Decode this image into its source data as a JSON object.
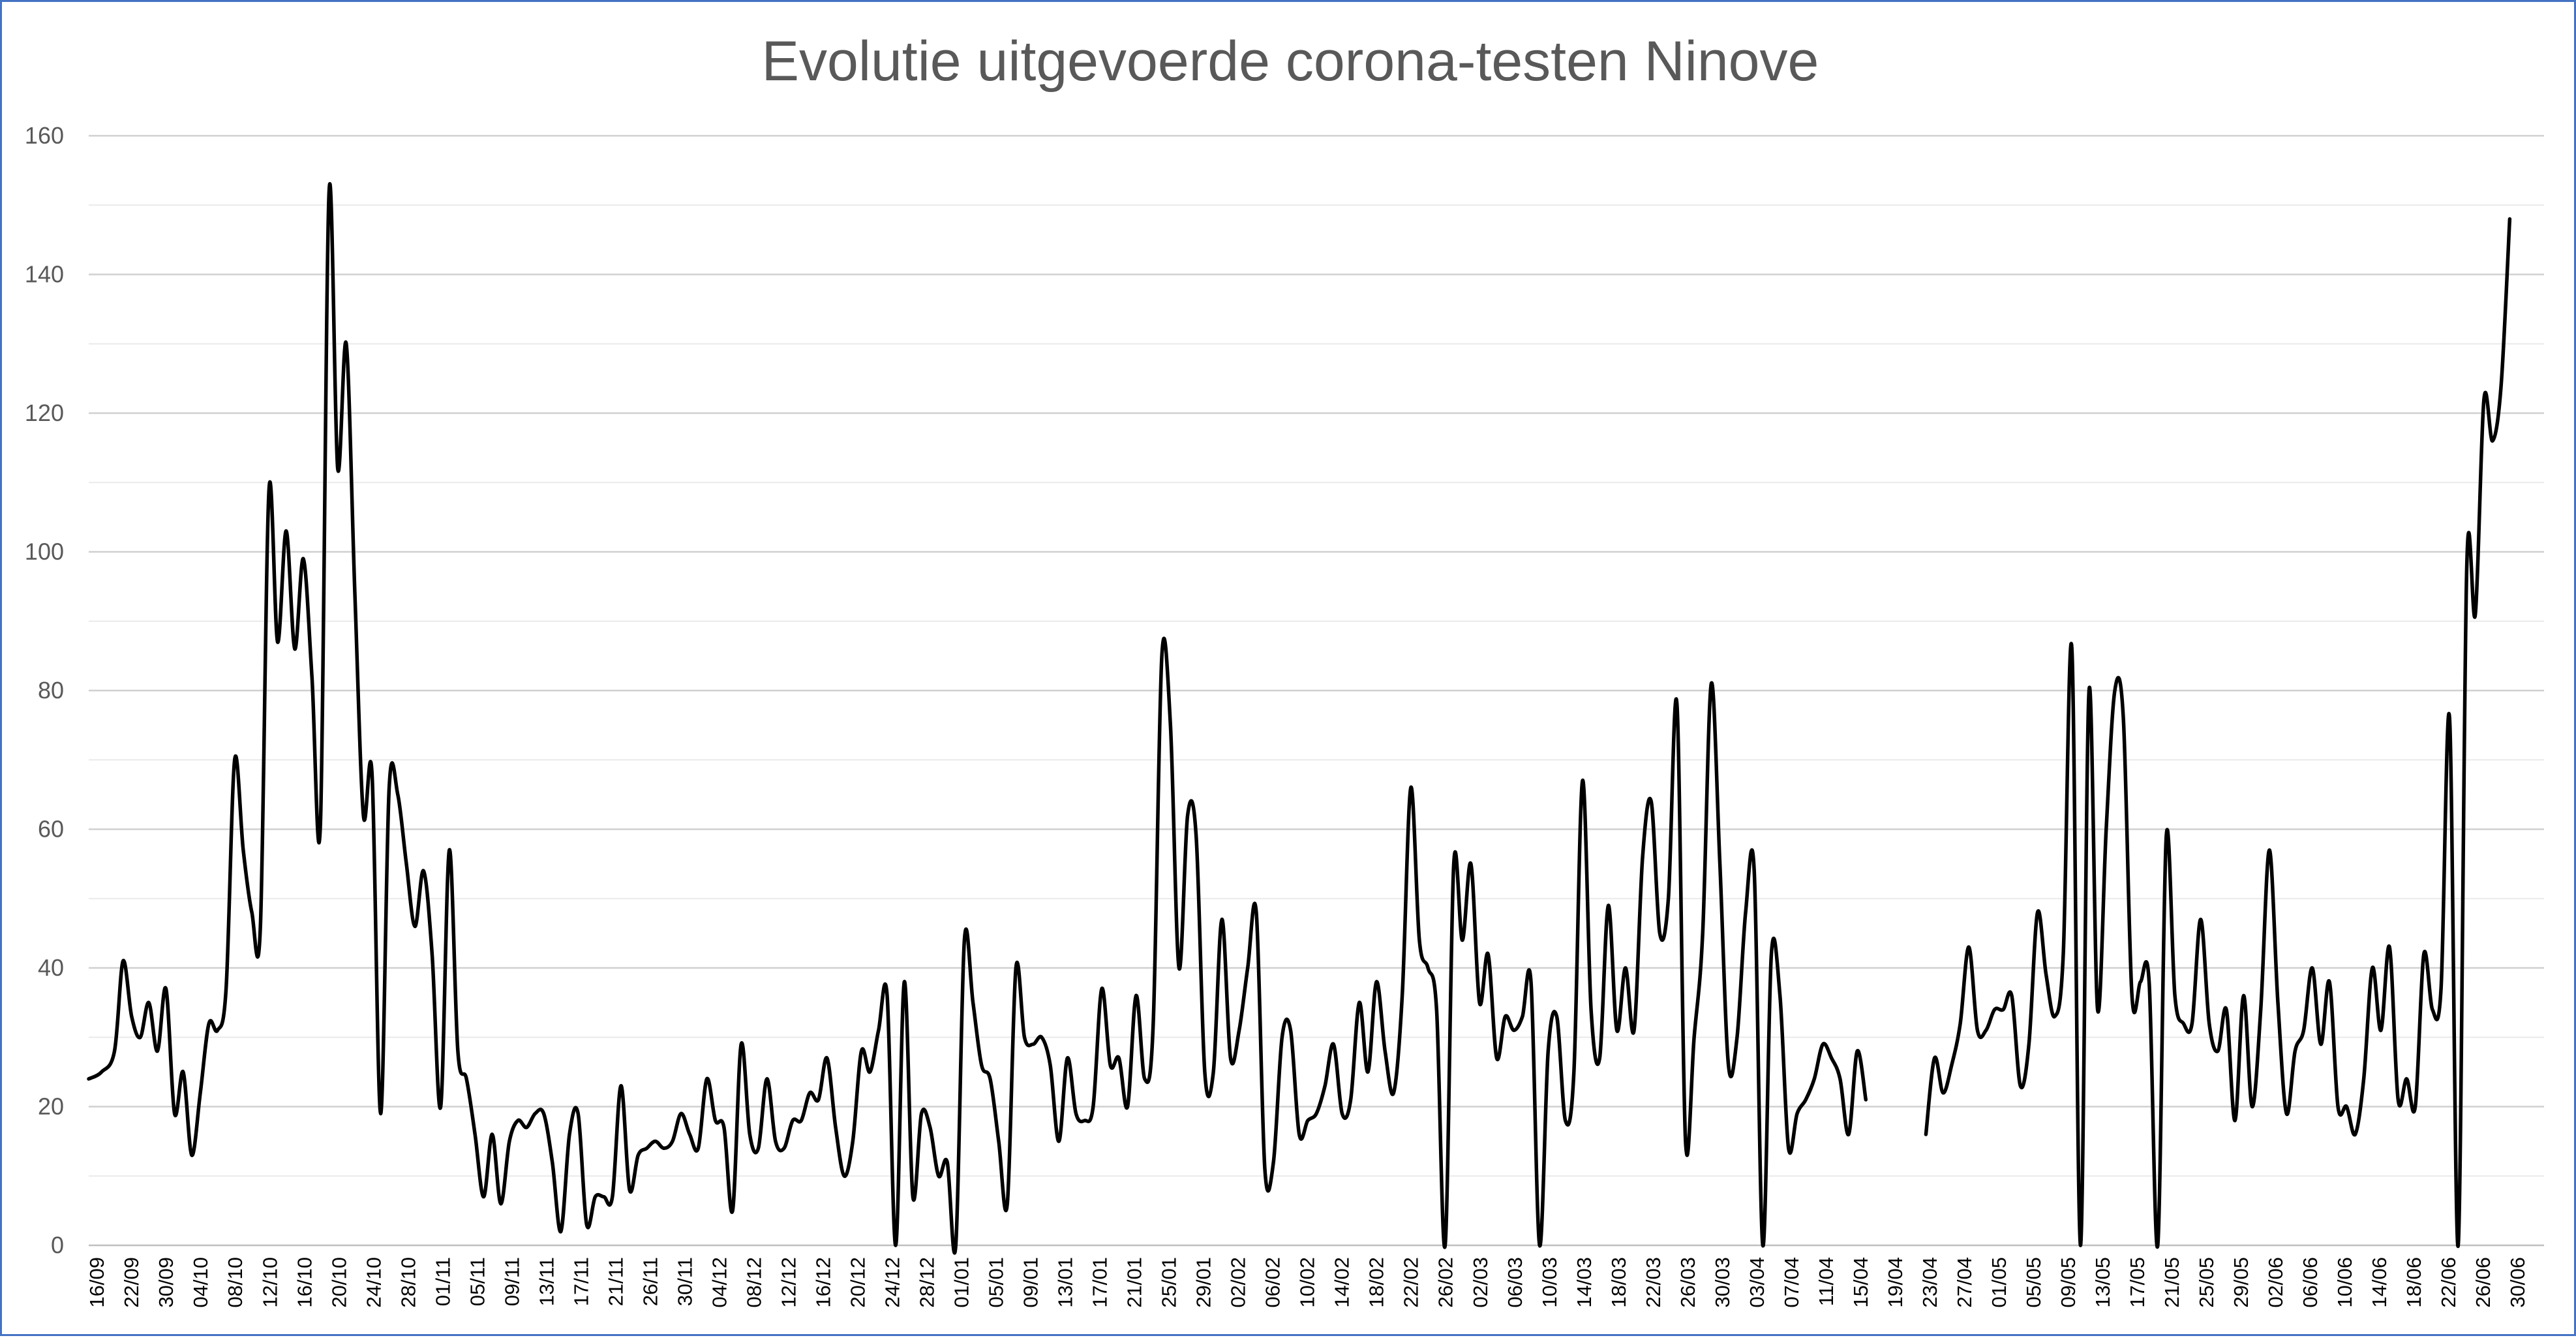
{
  "chart_data": {
    "type": "line",
    "title": "Evolutie uitgevoerde corona-testen Ninove",
    "xlabel": "",
    "ylabel": "",
    "ylim": [
      0,
      160
    ],
    "yticks": [
      0,
      20,
      40,
      60,
      80,
      100,
      120,
      140,
      160
    ],
    "grid": true,
    "minor_grid": true,
    "legend": "none",
    "line_color": "#000000",
    "categories": [
      "16/09",
      "22/09",
      "30/09",
      "04/10",
      "08/10",
      "12/10",
      "16/10",
      "20/10",
      "24/10",
      "28/10",
      "01/11",
      "05/11",
      "09/11",
      "13/11",
      "17/11",
      "21/11",
      "26/11",
      "30/11",
      "04/12",
      "08/12",
      "12/12",
      "16/12",
      "20/12",
      "24/12",
      "28/12",
      "01/01",
      "05/01",
      "09/01",
      "13/01",
      "17/01",
      "21/01",
      "25/01",
      "29/01",
      "02/02",
      "06/02",
      "10/02",
      "14/02",
      "18/02",
      "22/02",
      "26/02",
      "02/03",
      "06/03",
      "10/03",
      "14/03",
      "18/03",
      "22/03",
      "26/03",
      "30/03",
      "03/04",
      "07/04",
      "11/04",
      "15/04",
      "19/04",
      "23/04",
      "27/04",
      "01/05",
      "05/05",
      "09/05",
      "13/05",
      "17/05",
      "21/05",
      "25/05",
      "29/05",
      "02/06",
      "06/06",
      "10/06",
      "14/06",
      "18/06",
      "22/06",
      "26/06",
      "30/06"
    ],
    "series": [
      {
        "values": [
          [
            0,
            24
          ],
          [
            1.5,
            25
          ],
          [
            3,
            28
          ],
          [
            4,
            41
          ],
          [
            5,
            33
          ],
          [
            6,
            30
          ],
          [
            7,
            35
          ],
          [
            8,
            28
          ],
          [
            9,
            37
          ],
          [
            10,
            19
          ],
          [
            11,
            25
          ],
          [
            12,
            13
          ],
          [
            13,
            22
          ],
          [
            14,
            32
          ],
          [
            15,
            31
          ],
          [
            16,
            37
          ],
          [
            17,
            70
          ],
          [
            18,
            57
          ],
          [
            19,
            48
          ],
          [
            20,
            46
          ],
          [
            21,
            109
          ],
          [
            22,
            87
          ],
          [
            23,
            103
          ],
          [
            24,
            86
          ],
          [
            25,
            99
          ],
          [
            26,
            82
          ],
          [
            27,
            61
          ],
          [
            28,
            152
          ],
          [
            29,
            112
          ],
          [
            30,
            130
          ],
          [
            31,
            94
          ],
          [
            32,
            62
          ],
          [
            33,
            68
          ],
          [
            34,
            19
          ],
          [
            35,
            66
          ],
          [
            36,
            65
          ],
          [
            37,
            55
          ],
          [
            38,
            46
          ],
          [
            39,
            54
          ],
          [
            40,
            42
          ],
          [
            41,
            20
          ],
          [
            42,
            57
          ],
          [
            43,
            28
          ],
          [
            44,
            24
          ],
          [
            45,
            16
          ],
          [
            46,
            7
          ],
          [
            47,
            16
          ],
          [
            48,
            6
          ],
          [
            49,
            15
          ],
          [
            50,
            18
          ],
          [
            51,
            17
          ],
          [
            52,
            19
          ],
          [
            53,
            19
          ],
          [
            54,
            12
          ],
          [
            55,
            2
          ],
          [
            56,
            16
          ],
          [
            57,
            19
          ],
          [
            58,
            3
          ],
          [
            59,
            7
          ],
          [
            60,
            7
          ],
          [
            61,
            7
          ],
          [
            62,
            23
          ],
          [
            63,
            8
          ],
          [
            64,
            13
          ],
          [
            65,
            14
          ],
          [
            66,
            15
          ],
          [
            67,
            14
          ],
          [
            68,
            15
          ],
          [
            69,
            19
          ],
          [
            70,
            16
          ],
          [
            71,
            14
          ],
          [
            72,
            24
          ],
          [
            73,
            18
          ],
          [
            74,
            17
          ],
          [
            75,
            5
          ],
          [
            76,
            29
          ],
          [
            77,
            16
          ],
          [
            78,
            14
          ],
          [
            79,
            24
          ],
          [
            80,
            15
          ],
          [
            81,
            14
          ],
          [
            82,
            18
          ],
          [
            83,
            18
          ],
          [
            84,
            22
          ],
          [
            85,
            21
          ],
          [
            86,
            27
          ],
          [
            87,
            17
          ],
          [
            88,
            10
          ],
          [
            89,
            15
          ],
          [
            90,
            28
          ],
          [
            91,
            25
          ],
          [
            92,
            31
          ],
          [
            93,
            36
          ],
          [
            94,
            0
          ],
          [
            95,
            38
          ],
          [
            96,
            7
          ],
          [
            97,
            19
          ],
          [
            98,
            17
          ],
          [
            99,
            10
          ],
          [
            100,
            12
          ],
          [
            101,
            0
          ],
          [
            102,
            44
          ],
          [
            103,
            35
          ],
          [
            104,
            26
          ],
          [
            105,
            24
          ],
          [
            106,
            15
          ],
          [
            107,
            6
          ],
          [
            108,
            40
          ],
          [
            109,
            30
          ],
          [
            110,
            29
          ],
          [
            111,
            30
          ],
          [
            112,
            26
          ],
          [
            113,
            15
          ],
          [
            114,
            27
          ],
          [
            115,
            19
          ],
          [
            116,
            18
          ],
          [
            117,
            20
          ],
          [
            118,
            37
          ],
          [
            119,
            26
          ],
          [
            120,
            27
          ],
          [
            121,
            20
          ],
          [
            122,
            36
          ],
          [
            123,
            24
          ],
          [
            124,
            32
          ],
          [
            125,
            85
          ],
          [
            126,
            75
          ],
          [
            127,
            40
          ],
          [
            128,
            62
          ],
          [
            129,
            59
          ],
          [
            130,
            25
          ],
          [
            131,
            25
          ],
          [
            132,
            47
          ],
          [
            133,
            27
          ],
          [
            134,
            31
          ],
          [
            135,
            40
          ],
          [
            136,
            48
          ],
          [
            137,
            11
          ],
          [
            138,
            12
          ],
          [
            139,
            30
          ],
          [
            140,
            31
          ],
          [
            141,
            16
          ],
          [
            142,
            18
          ],
          [
            143,
            19
          ],
          [
            144,
            23
          ],
          [
            145,
            29
          ],
          [
            146,
            19
          ],
          [
            147,
            21
          ],
          [
            148,
            35
          ],
          [
            149,
            25
          ],
          [
            150,
            38
          ],
          [
            151,
            28
          ],
          [
            152,
            22
          ],
          [
            153,
            36
          ],
          [
            154,
            66
          ],
          [
            155,
            44
          ],
          [
            156,
            40
          ],
          [
            157,
            34
          ],
          [
            158,
            0
          ],
          [
            159,
            55
          ],
          [
            160,
            44
          ],
          [
            161,
            55
          ],
          [
            162,
            35
          ],
          [
            163,
            42
          ],
          [
            164,
            27
          ],
          [
            165,
            33
          ],
          [
            166,
            31
          ],
          [
            167,
            33
          ],
          [
            168,
            38
          ],
          [
            169,
            0
          ],
          [
            170,
            28
          ],
          [
            171,
            33
          ],
          [
            172,
            18
          ],
          [
            173,
            25
          ],
          [
            174,
            67
          ],
          [
            175,
            34
          ],
          [
            176,
            27
          ],
          [
            177,
            49
          ],
          [
            178,
            31
          ],
          [
            179,
            40
          ],
          [
            180,
            31
          ],
          [
            181,
            56
          ],
          [
            182,
            64
          ],
          [
            183,
            45
          ],
          [
            184,
            50
          ],
          [
            185,
            78
          ],
          [
            186,
            15
          ],
          [
            187,
            30
          ],
          [
            188,
            45
          ],
          [
            189,
            81
          ],
          [
            190,
            55
          ],
          [
            191,
            26
          ],
          [
            192,
            30
          ],
          [
            193,
            48
          ],
          [
            194,
            54
          ],
          [
            195,
            0
          ],
          [
            196,
            42
          ],
          [
            197,
            36
          ],
          [
            198,
            14
          ],
          [
            199,
            19
          ],
          [
            200,
            21
          ],
          [
            201,
            24
          ],
          [
            202,
            29
          ],
          [
            203,
            27
          ],
          [
            204,
            24
          ],
          [
            205,
            16
          ],
          [
            206,
            28
          ],
          [
            207,
            21
          ],
          null,
          [
            214,
            16
          ],
          [
            215,
            27
          ],
          [
            216,
            22
          ],
          [
            217,
            26
          ],
          [
            218,
            32
          ],
          [
            219,
            43
          ],
          [
            220,
            31
          ],
          [
            221,
            31
          ],
          [
            222,
            34
          ],
          [
            223,
            34
          ],
          [
            224,
            36
          ],
          [
            225,
            23
          ],
          [
            226,
            29
          ],
          [
            227,
            48
          ],
          [
            228,
            39
          ],
          [
            229,
            33
          ],
          [
            230,
            42
          ],
          [
            231,
            86
          ],
          [
            232,
            0
          ],
          [
            233,
            80
          ],
          [
            234,
            34
          ],
          [
            235,
            60
          ],
          [
            236,
            80
          ],
          [
            237,
            76
          ],
          [
            238,
            36
          ],
          [
            239,
            38
          ],
          [
            240,
            38
          ],
          [
            241,
            0
          ],
          [
            242,
            59
          ],
          [
            243,
            36
          ],
          [
            244,
            32
          ],
          [
            245,
            32
          ],
          [
            246,
            47
          ],
          [
            247,
            32
          ],
          [
            248,
            28
          ],
          [
            249,
            34
          ],
          [
            250,
            18
          ],
          [
            251,
            36
          ],
          [
            252,
            20
          ],
          [
            253,
            34
          ],
          [
            254,
            57
          ],
          [
            255,
            35
          ],
          [
            256,
            19
          ],
          [
            257,
            28
          ],
          [
            258,
            31
          ],
          [
            259,
            40
          ],
          [
            260,
            29
          ],
          [
            261,
            38
          ],
          [
            262,
            20
          ],
          [
            263,
            20
          ],
          [
            264,
            16
          ],
          [
            265,
            24
          ],
          [
            266,
            40
          ],
          [
            267,
            31
          ],
          [
            268,
            43
          ],
          [
            269,
            21
          ],
          [
            270,
            24
          ],
          [
            271,
            20
          ],
          [
            272,
            42
          ],
          [
            273,
            34
          ],
          [
            274,
            37
          ],
          [
            275,
            76
          ],
          [
            276,
            0
          ],
          [
            277,
            98
          ],
          [
            278,
            91
          ],
          [
            279,
            122
          ],
          [
            280,
            116
          ],
          [
            281,
            124
          ],
          [
            282,
            148
          ]
        ]
      }
    ]
  }
}
